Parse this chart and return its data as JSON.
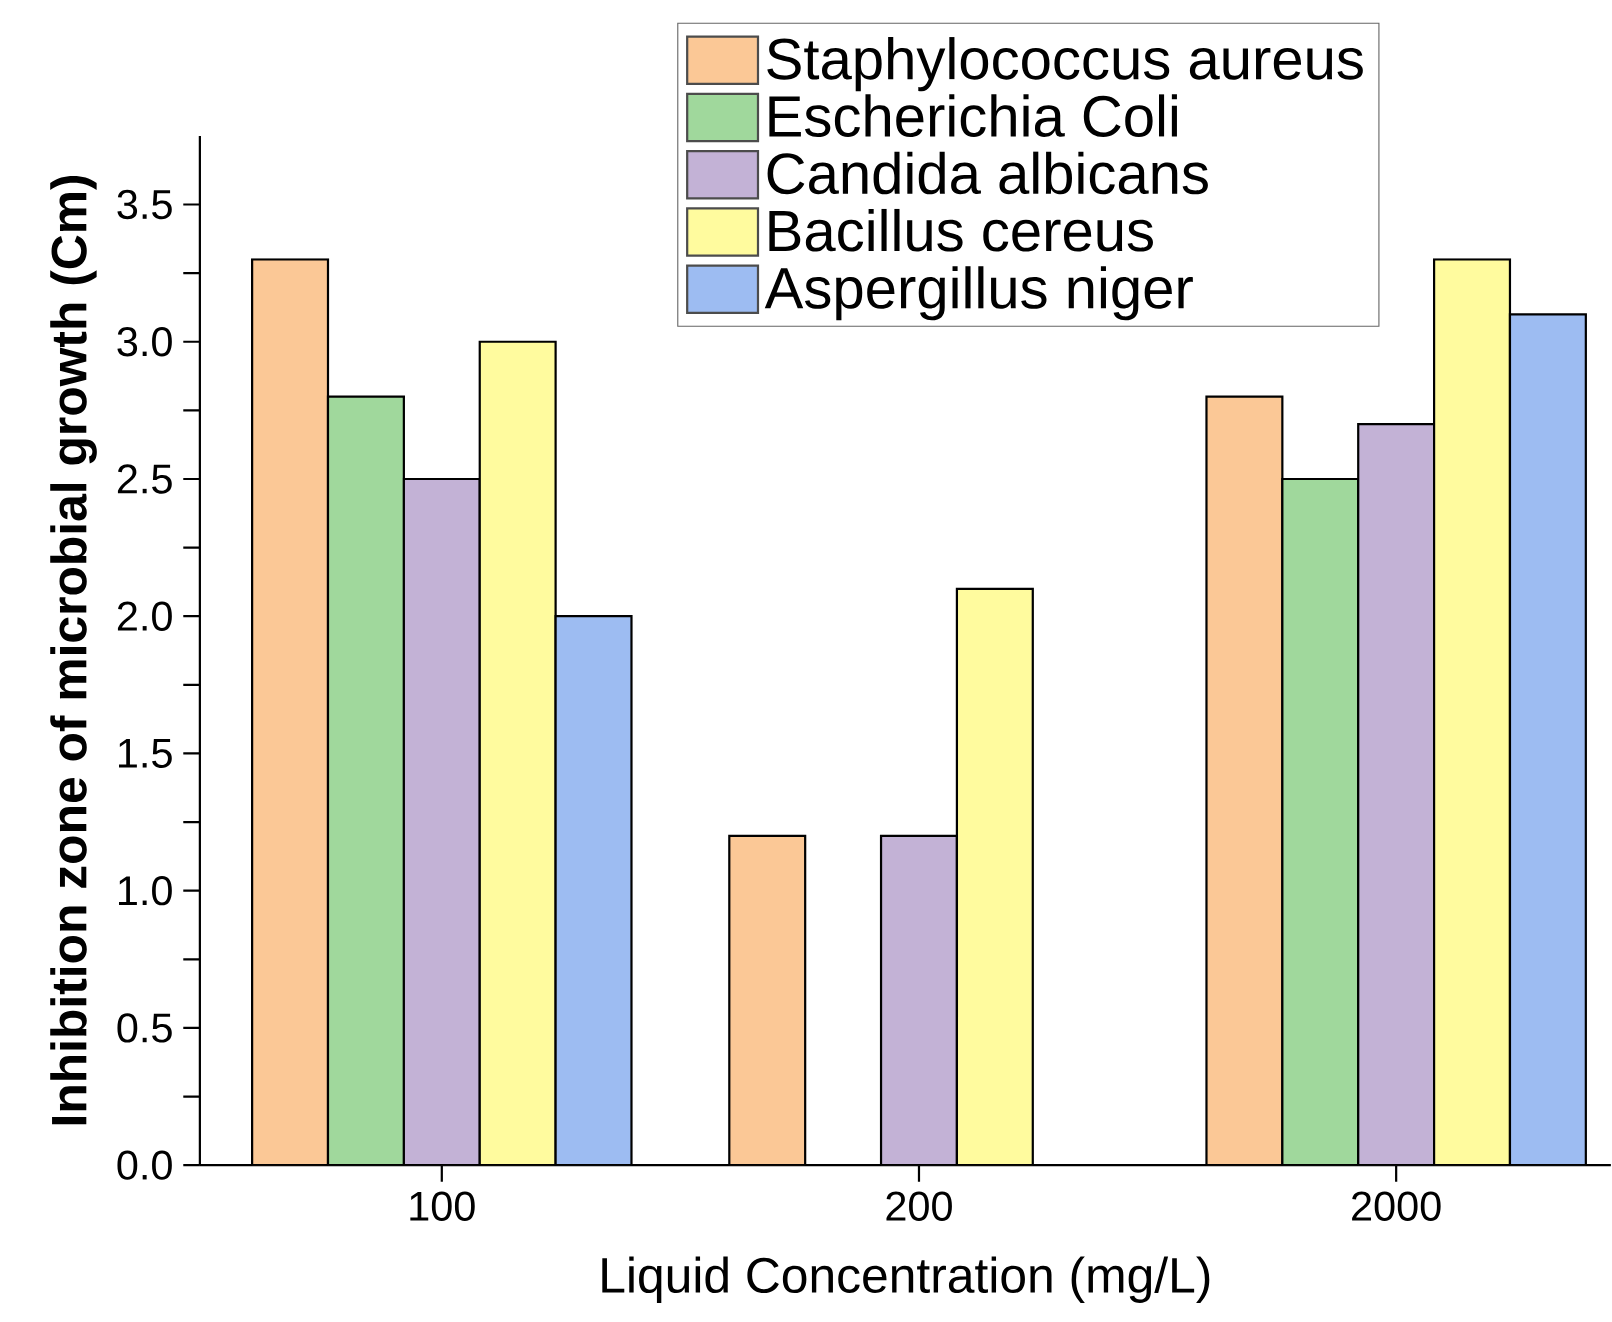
{
  "chart_data": {
    "type": "bar",
    "xlabel": "Liquid Concentration (mg/L)",
    "ylabel": "Inhibition zone of microbial growth (Cm)",
    "categories": [
      "100",
      "200",
      "2000"
    ],
    "series": [
      {
        "name": "Staphylococcus aureus",
        "color": "#fbc896",
        "values": [
          3.3,
          1.2,
          2.8
        ]
      },
      {
        "name": "Escherichia Coli",
        "color": "#a0d89c",
        "values": [
          2.8,
          null,
          2.5
        ]
      },
      {
        "name": "Candida albicans",
        "color": "#c3b2d6",
        "values": [
          2.5,
          1.2,
          2.7
        ]
      },
      {
        "name": "Bacillus cereus",
        "color": "#fffb9e",
        "values": [
          3.0,
          2.1,
          3.3
        ]
      },
      {
        "name": "Aspergillus niger",
        "color": "#9dbcf2",
        "values": [
          2.0,
          null,
          3.1
        ]
      }
    ],
    "ylim": [
      0,
      3.75
    ],
    "yticks": [
      {
        "value": 0,
        "label": "0.0"
      },
      {
        "value": 0.25,
        "label": null
      },
      0.5,
      {
        "value": 0.75,
        "label": null
      },
      {
        "value": 1,
        "label": "1.0"
      },
      {
        "value": 1.25,
        "label": null
      },
      1.5,
      {
        "value": 1.75,
        "label": null
      },
      {
        "value": 2,
        "label": "2.0"
      },
      {
        "value": 2.25,
        "label": null
      },
      2.5,
      {
        "value": 2.75,
        "label": null
      },
      {
        "value": 3,
        "label": "3.0"
      },
      {
        "value": 3.25,
        "label": null
      },
      3.5
    ],
    "grid": false,
    "legend": "top right"
  }
}
